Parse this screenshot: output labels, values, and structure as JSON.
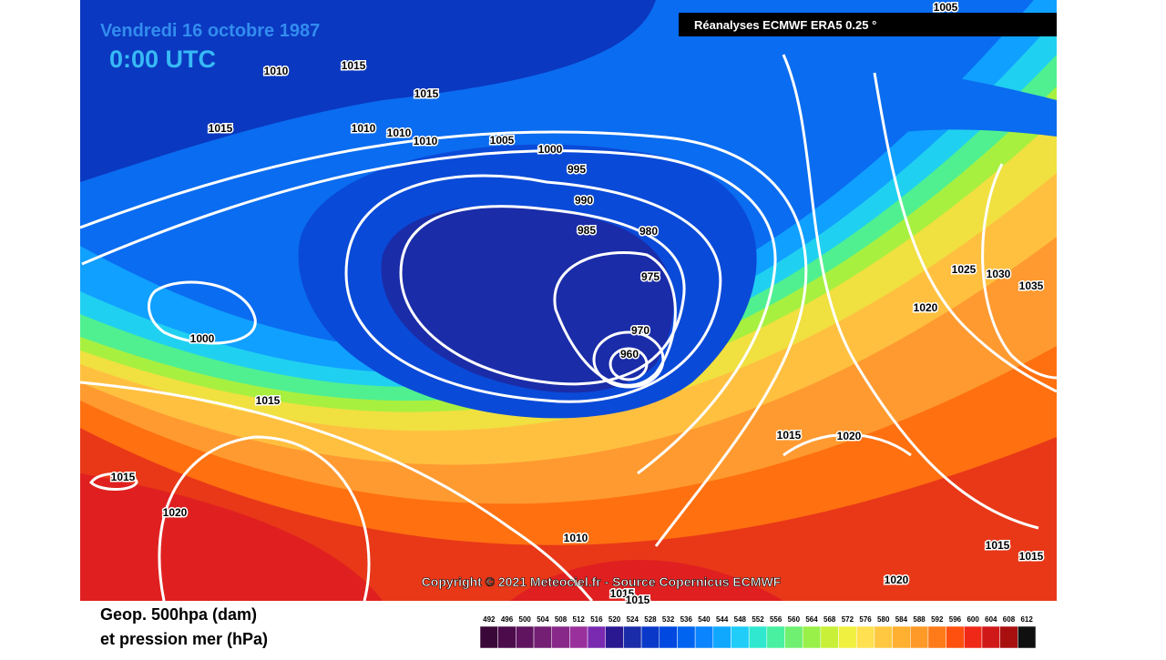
{
  "header": {
    "date": "Vendredi 16 octobre 1987",
    "time": "0:00 UTC",
    "source": "Réanalyses ECMWF ERA5 0.25 °"
  },
  "copyright": "Copyright © 2021 Meteociel.fr - Source Copernicus ECMWF",
  "legend": {
    "line1": "Geop. 500hpa (dam)",
    "line2": "et pression mer (hPa)",
    "scale": [
      492,
      496,
      500,
      504,
      508,
      512,
      516,
      520,
      524,
      528,
      532,
      536,
      540,
      544,
      548,
      552,
      556,
      560,
      564,
      568,
      572,
      576,
      580,
      584,
      588,
      592,
      596,
      600,
      604,
      608,
      612
    ],
    "colors": [
      "#3a0838",
      "#4c0c4c",
      "#601460",
      "#741e74",
      "#882888",
      "#9a309c",
      "#7a2ab0",
      "#2a1890",
      "#1a2ca8",
      "#0a38c8",
      "#0048e0",
      "#0064f0",
      "#0a84ff",
      "#10a8ff",
      "#20ccf8",
      "#30e8d0",
      "#48f0a0",
      "#70f070",
      "#98f048",
      "#c8f038",
      "#f0f040",
      "#ffe050",
      "#ffc840",
      "#ffb030",
      "#ff9a28",
      "#ff7a18",
      "#ff5010",
      "#f02818",
      "#d01818",
      "#a81010",
      "#101010"
    ]
  },
  "isobar_labels": [
    "1005",
    "1010",
    "1015",
    "1015",
    "1015",
    "1010",
    "1010",
    "1010",
    "1005",
    "1000",
    "995",
    "990",
    "985",
    "980",
    "975",
    "970",
    "960",
    "1000",
    "1015",
    "1015",
    "1020",
    "1015",
    "1020",
    "1010",
    "1015",
    "1015",
    "1020",
    "1015",
    "1015",
    "1025",
    "1030",
    "1035",
    "1020"
  ]
}
